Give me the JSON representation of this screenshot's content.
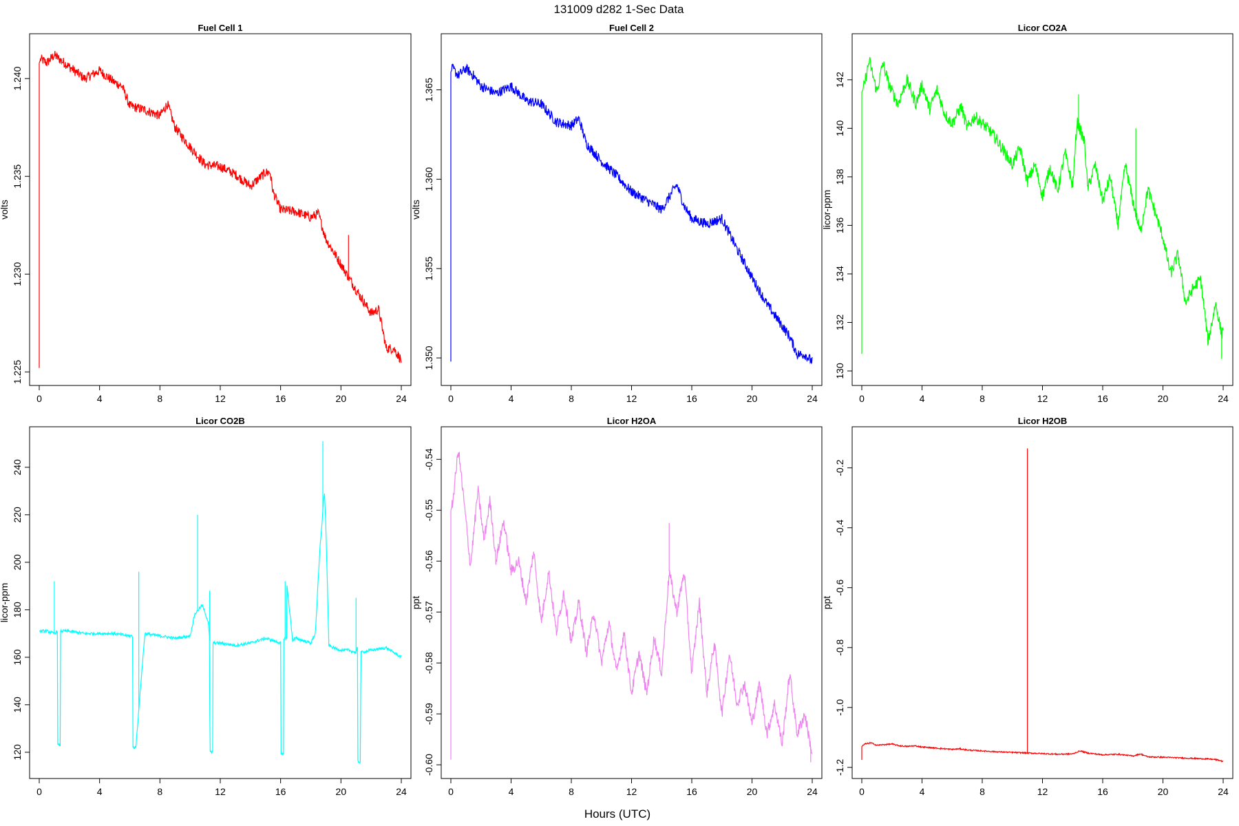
{
  "figure": {
    "title": "131009   d282   1-Sec Data",
    "xlabel": "Hours (UTC)"
  },
  "chart_data": [
    {
      "type": "line",
      "title": "Fuel Cell 1",
      "ylabel": "volts",
      "color": "#ff0000",
      "xlim": [
        0,
        24
      ],
      "ylim": [
        1.2248,
        1.2418
      ],
      "xticks": [
        0,
        4,
        8,
        12,
        16,
        20,
        24
      ],
      "yticks": [
        "1.225",
        "1.230",
        "1.235",
        "1.240"
      ],
      "ytick_values": [
        1.225,
        1.23,
        1.235,
        1.24
      ],
      "noise": 0.00025,
      "spikes": [
        [
          0.0,
          1.2252
        ],
        [
          20.5,
          1.232
        ]
      ],
      "x": [
        0,
        0.1,
        0.5,
        1,
        2,
        3,
        4,
        5,
        5.5,
        6,
        6.5,
        7,
        8,
        8.5,
        9,
        10,
        11,
        12,
        13,
        14,
        15,
        15.3,
        15.5,
        16,
        17,
        18,
        18.5,
        19,
        20,
        21,
        22,
        22.5,
        23,
        23.5,
        24
      ],
      "y": [
        1.2408,
        1.241,
        1.2408,
        1.2412,
        1.2406,
        1.24,
        1.2404,
        1.2398,
        1.2396,
        1.2386,
        1.2385,
        1.2384,
        1.2381,
        1.2387,
        1.2375,
        1.2365,
        1.2356,
        1.2355,
        1.2351,
        1.2345,
        1.2352,
        1.2352,
        1.2342,
        1.2333,
        1.2332,
        1.2329,
        1.2331,
        1.2318,
        1.2305,
        1.2292,
        1.228,
        1.2282,
        1.2262,
        1.2262,
        1.2256
      ]
    },
    {
      "type": "line",
      "title": "Fuel Cell 2",
      "ylabel": "volts",
      "color": "#0000ff",
      "xlim": [
        0,
        24
      ],
      "ylim": [
        1.349,
        1.3676
      ],
      "xticks": [
        0,
        4,
        8,
        12,
        16,
        20,
        24
      ],
      "yticks": [
        "1.350",
        "1.355",
        "1.360",
        "1.365"
      ],
      "ytick_values": [
        1.35,
        1.355,
        1.36,
        1.365
      ],
      "noise": 0.00028,
      "spikes": [
        [
          0.0,
          1.3498
        ]
      ],
      "x": [
        0,
        0.1,
        0.5,
        1,
        1.5,
        2,
        3,
        4,
        5,
        6,
        7,
        8,
        8.5,
        9,
        10,
        11,
        12,
        13,
        14,
        15,
        15.5,
        16,
        17,
        18,
        19,
        20,
        21,
        22,
        22.5,
        23,
        23.5,
        24
      ],
      "y": [
        1.366,
        1.3662,
        1.3658,
        1.3662,
        1.3658,
        1.3652,
        1.3648,
        1.3652,
        1.3644,
        1.3642,
        1.3632,
        1.363,
        1.3634,
        1.362,
        1.361,
        1.3602,
        1.3593,
        1.3588,
        1.3583,
        1.3597,
        1.3585,
        1.3578,
        1.3575,
        1.3578,
        1.3561,
        1.3545,
        1.353,
        1.3518,
        1.3512,
        1.3502,
        1.3502,
        1.3498
      ]
    },
    {
      "type": "line",
      "title": "Licor CO2A",
      "ylabel": "licor-ppm",
      "color": "#00ff00",
      "xlim": [
        0,
        24
      ],
      "ylim": [
        129.8,
        143.5
      ],
      "xticks": [
        0,
        4,
        8,
        12,
        16,
        20,
        24
      ],
      "yticks": [
        "130",
        "132",
        "134",
        "136",
        "138",
        "140",
        "142"
      ],
      "ytick_values": [
        130,
        132,
        134,
        136,
        138,
        140,
        142
      ],
      "noise": 0.25,
      "spikes": [
        [
          0.0,
          130.7
        ],
        [
          14.4,
          141.4
        ],
        [
          18.2,
          140.0
        ],
        [
          23.9,
          130.5
        ]
      ],
      "x": [
        0,
        0.1,
        0.5,
        1,
        1.4,
        1.8,
        2.4,
        3,
        3.6,
        4,
        4.5,
        5,
        5.5,
        6,
        6.6,
        7,
        7.5,
        8,
        8.5,
        9,
        10,
        10.5,
        11,
        11.5,
        12,
        12.5,
        13,
        13.5,
        14,
        14.3,
        14.8,
        15,
        15.5,
        16,
        16.5,
        17,
        17.5,
        18,
        18.5,
        19,
        19.5,
        20,
        20.5,
        21,
        21.5,
        22,
        22.5,
        23,
        23.5,
        23.9,
        24
      ],
      "y": [
        141.5,
        141.6,
        142.8,
        141.5,
        142.7,
        141.8,
        141.0,
        142.0,
        141.0,
        141.8,
        140.8,
        141.6,
        140.6,
        140.2,
        140.9,
        140.0,
        140.5,
        140.2,
        139.9,
        139.5,
        138.5,
        139.2,
        137.8,
        138.5,
        137.2,
        138.4,
        137.4,
        139.0,
        137.6,
        140.3,
        139.4,
        137.5,
        138.5,
        137.0,
        138.0,
        136.0,
        138.5,
        137.0,
        135.7,
        137.5,
        136.5,
        135.5,
        134.0,
        134.8,
        132.8,
        133.4,
        133.8,
        131.2,
        132.8,
        131.5,
        131.8
      ]
    },
    {
      "type": "line",
      "title": "Licor CO2B",
      "ylabel": "licor-ppm",
      "color": "#00ffff",
      "xlim": [
        0,
        24
      ],
      "ylim": [
        113,
        253
      ],
      "xticks": [
        0,
        4,
        8,
        12,
        16,
        20,
        24
      ],
      "yticks": [
        "120",
        "140",
        "160",
        "180",
        "200",
        "220",
        "240"
      ],
      "ytick_values": [
        120,
        140,
        160,
        180,
        200,
        220,
        240
      ],
      "noise": 0.6,
      "spikes": [
        [
          1.0,
          192
        ],
        [
          6.6,
          196
        ],
        [
          10.5,
          220
        ],
        [
          11.3,
          188
        ],
        [
          16.3,
          192
        ],
        [
          18.8,
          251
        ],
        [
          21.0,
          185
        ]
      ],
      "x": [
        0,
        0.5,
        1.0,
        1.2,
        1.21,
        1.4,
        1.41,
        2,
        3,
        4,
        5,
        5.9,
        6.0,
        6.2,
        6.21,
        6.4,
        7,
        8,
        9,
        10,
        10.3,
        10.8,
        11.2,
        11.3,
        11.31,
        11.5,
        11.51,
        12,
        13,
        14,
        15,
        15.5,
        16.0,
        16.01,
        16.2,
        16.21,
        16.4,
        16.41,
        16.8,
        17,
        18,
        18.3,
        18.6,
        18.9,
        19.0,
        19.2,
        19.5,
        20,
        20.5,
        21.0,
        21.1,
        21.11,
        21.3,
        21.31,
        22,
        23,
        24
      ],
      "y": [
        171,
        171,
        170,
        171,
        123,
        123,
        171,
        171,
        170,
        170,
        170,
        169,
        169,
        169,
        122,
        122,
        170,
        169,
        168,
        169,
        178,
        182,
        175,
        167,
        120,
        120,
        166,
        166,
        165,
        166,
        168,
        167,
        166,
        119,
        119,
        168,
        168,
        191,
        167,
        168,
        166,
        170,
        205,
        230,
        215,
        165,
        164,
        163,
        163,
        162,
        164,
        116,
        116,
        162,
        163,
        164,
        160
      ]
    },
    {
      "type": "line",
      "title": "Licor H2OA",
      "ylabel": "ppt",
      "color": "#ee82ee",
      "xlim": [
        0,
        24
      ],
      "ylim": [
        -0.6008,
        -0.5355
      ],
      "xticks": [
        0,
        4,
        8,
        12,
        16,
        20,
        24
      ],
      "yticks": [
        "-0.60",
        "-0.59",
        "-0.58",
        "-0.57",
        "-0.56",
        "-0.55",
        "-0.54"
      ],
      "ytick_values": [
        -0.6,
        -0.59,
        -0.58,
        -0.57,
        -0.56,
        -0.55,
        -0.54
      ],
      "noise": 0.0012,
      "spikes": [
        [
          0.0,
          -0.599
        ],
        [
          14.5,
          -0.5525
        ],
        [
          23.9,
          -0.5995
        ]
      ],
      "x": [
        0,
        0.1,
        0.5,
        1,
        1.3,
        1.8,
        2.2,
        2.6,
        3,
        3.5,
        4,
        4.5,
        5,
        5.5,
        6,
        6.5,
        7,
        7.5,
        8,
        8.5,
        9,
        9.5,
        10,
        10.5,
        11,
        11.5,
        12,
        12.5,
        13,
        13.5,
        14,
        14.5,
        15,
        15.5,
        16,
        16.5,
        17,
        17.5,
        18,
        18.5,
        19,
        19.5,
        20,
        20.5,
        21,
        21.5,
        22,
        22.5,
        23,
        23.5,
        24
      ],
      "y": [
        -0.55,
        -0.549,
        -0.538,
        -0.552,
        -0.561,
        -0.546,
        -0.556,
        -0.548,
        -0.56,
        -0.552,
        -0.562,
        -0.56,
        -0.568,
        -0.558,
        -0.572,
        -0.562,
        -0.574,
        -0.566,
        -0.576,
        -0.568,
        -0.578,
        -0.57,
        -0.58,
        -0.572,
        -0.582,
        -0.574,
        -0.586,
        -0.578,
        -0.586,
        -0.575,
        -0.582,
        -0.562,
        -0.57,
        -0.562,
        -0.582,
        -0.568,
        -0.586,
        -0.576,
        -0.59,
        -0.578,
        -0.588,
        -0.584,
        -0.592,
        -0.584,
        -0.594,
        -0.588,
        -0.596,
        -0.582,
        -0.594,
        -0.59,
        -0.598
      ]
    },
    {
      "type": "line",
      "title": "Licor H2OB",
      "ylabel": "ppt",
      "color": "#ff0000",
      "xlim": [
        0,
        24
      ],
      "ylim": [
        -1.205,
        -0.095
      ],
      "xticks": [
        0,
        4,
        8,
        12,
        16,
        20,
        24
      ],
      "yticks": [
        "-1.2",
        "-1.0",
        "-0.8",
        "-0.6",
        "-0.4",
        "-0.2"
      ],
      "ytick_values": [
        -1.2,
        -1.0,
        -0.8,
        -0.6,
        -0.4,
        -0.2
      ],
      "noise": 0.002,
      "spikes": [
        [
          0.0,
          -1.175
        ],
        [
          11.0,
          -0.135
        ]
      ],
      "x": [
        0,
        0.2,
        0.6,
        1.0,
        1.5,
        2.0,
        2.5,
        3.0,
        3.5,
        4.0,
        5.0,
        6.0,
        6.5,
        7.0,
        8.0,
        9.0,
        10.0,
        11.0,
        12.0,
        13.0,
        14.0,
        14.5,
        15.0,
        16.0,
        17.0,
        18.0,
        18.5,
        19.0,
        20.0,
        21.0,
        22.0,
        23.0,
        23.5,
        24.0
      ],
      "y": [
        -1.13,
        -1.122,
        -1.118,
        -1.126,
        -1.124,
        -1.122,
        -1.128,
        -1.13,
        -1.128,
        -1.132,
        -1.136,
        -1.14,
        -1.138,
        -1.142,
        -1.145,
        -1.148,
        -1.15,
        -1.152,
        -1.154,
        -1.156,
        -1.155,
        -1.145,
        -1.152,
        -1.158,
        -1.156,
        -1.162,
        -1.155,
        -1.165,
        -1.166,
        -1.168,
        -1.17,
        -1.172,
        -1.174,
        -1.18
      ]
    }
  ]
}
